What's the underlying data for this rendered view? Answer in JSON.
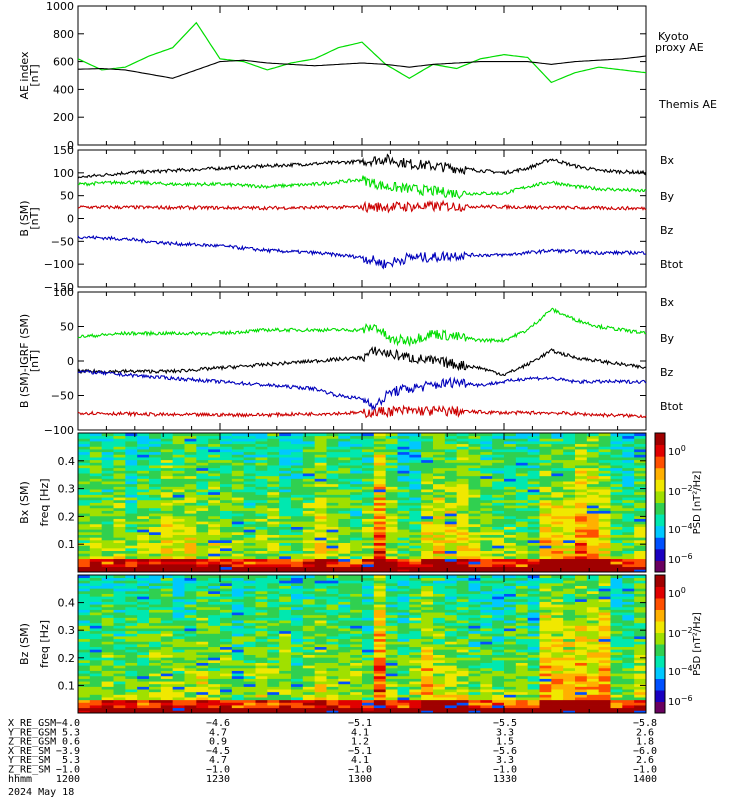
{
  "figure": {
    "time_ticks": [
      "1200",
      "1230",
      "1300",
      "1330",
      "1400"
    ]
  },
  "chart_data": [
    {
      "type": "line",
      "panel": "ae",
      "ylabel": "AE index [nT]",
      "ylim": [
        0,
        1000
      ],
      "yticks": [
        0,
        200,
        400,
        600,
        800,
        1000
      ],
      "x_range_hhmm": [
        "1200",
        "1400"
      ],
      "series": [
        {
          "name": "Kyoto proxy AE",
          "color": "#00dd00",
          "x_min": [
            0,
            5,
            10,
            15,
            20,
            25,
            30,
            35,
            40,
            45,
            50,
            55,
            60,
            65,
            70,
            75,
            80,
            85,
            90,
            95,
            100,
            105,
            110,
            115,
            120
          ],
          "values": [
            620,
            540,
            560,
            640,
            700,
            880,
            620,
            600,
            540,
            590,
            620,
            700,
            740,
            580,
            480,
            580,
            550,
            620,
            650,
            630,
            450,
            520,
            560,
            540,
            520
          ]
        },
        {
          "name": "Themis AE",
          "color": "#000000",
          "x_min": [
            0,
            5,
            10,
            15,
            20,
            25,
            30,
            35,
            40,
            45,
            50,
            55,
            60,
            65,
            70,
            75,
            80,
            85,
            90,
            95,
            100,
            105,
            110,
            115,
            120
          ],
          "values": [
            545,
            550,
            540,
            510,
            480,
            540,
            600,
            610,
            590,
            580,
            570,
            580,
            590,
            580,
            560,
            580,
            590,
            600,
            600,
            600,
            580,
            600,
            610,
            620,
            640
          ]
        }
      ],
      "legend": [
        "Kyoto",
        "proxy AE",
        "Themis AE"
      ]
    },
    {
      "type": "line",
      "panel": "b_sm",
      "ylabel": "B (SM) [nT]",
      "ylim": [
        -150,
        150
      ],
      "yticks": [
        -150,
        -100,
        -50,
        0,
        50,
        100,
        150
      ],
      "series": [
        {
          "name": "Bx",
          "color": "#000000",
          "x_min": [
            0,
            10,
            20,
            30,
            40,
            50,
            60,
            65,
            70,
            75,
            80,
            90,
            95,
            100,
            105,
            110,
            120
          ],
          "values": [
            90,
            100,
            105,
            110,
            115,
            120,
            125,
            130,
            120,
            115,
            110,
            100,
            110,
            130,
            115,
            105,
            100
          ]
        },
        {
          "name": "By",
          "color": "#00dd00",
          "x_min": [
            0,
            10,
            20,
            30,
            40,
            50,
            60,
            65,
            70,
            75,
            80,
            90,
            95,
            100,
            105,
            110,
            120
          ],
          "values": [
            75,
            80,
            75,
            75,
            70,
            75,
            85,
            70,
            65,
            60,
            55,
            55,
            70,
            80,
            70,
            65,
            60
          ]
        },
        {
          "name": "Bz",
          "color": "#cc0000",
          "x_min": [
            0,
            20,
            40,
            60,
            80,
            100,
            120
          ],
          "values": [
            25,
            24,
            23,
            25,
            27,
            24,
            22
          ]
        },
        {
          "name": "Btot",
          "color": "#0000bb",
          "x_min": [
            0,
            10,
            20,
            30,
            40,
            50,
            60,
            65,
            70,
            75,
            80,
            90,
            95,
            100,
            110,
            120
          ],
          "values": [
            -40,
            -45,
            -55,
            -60,
            -70,
            -75,
            -85,
            -100,
            -85,
            -85,
            -80,
            -80,
            -75,
            -70,
            -75,
            -75
          ]
        }
      ],
      "legend": [
        "Bx",
        "By",
        "Bz",
        "Btot"
      ]
    },
    {
      "type": "line",
      "panel": "b_minus_igrf",
      "ylabel": "B (SM)-IGRF (SM) [nT]",
      "ylim": [
        -100,
        100
      ],
      "yticks": [
        -100,
        -50,
        0,
        50,
        100
      ],
      "series": [
        {
          "name": "By",
          "color": "#00dd00",
          "x_min": [
            0,
            10,
            20,
            30,
            40,
            50,
            60,
            63,
            66,
            70,
            75,
            80,
            85,
            90,
            95,
            100,
            105,
            110,
            115,
            120
          ],
          "values": [
            35,
            40,
            40,
            40,
            45,
            45,
            45,
            50,
            30,
            30,
            40,
            35,
            30,
            30,
            45,
            75,
            60,
            50,
            45,
            40
          ]
        },
        {
          "name": "Bx",
          "color": "#000000",
          "x_min": [
            0,
            10,
            20,
            30,
            40,
            50,
            60,
            63,
            66,
            70,
            75,
            80,
            85,
            90,
            95,
            100,
            105,
            110,
            115,
            120
          ],
          "values": [
            -15,
            -15,
            -15,
            -10,
            -5,
            0,
            5,
            15,
            10,
            5,
            0,
            -5,
            -10,
            -20,
            -5,
            15,
            5,
            0,
            -5,
            -10
          ]
        },
        {
          "name": "Bz",
          "color": "#cc0000",
          "x_min": [
            0,
            20,
            40,
            60,
            65,
            70,
            80,
            90,
            100,
            110,
            120
          ],
          "values": [
            -75,
            -78,
            -78,
            -75,
            -73,
            -72,
            -73,
            -75,
            -75,
            -78,
            -80
          ]
        },
        {
          "name": "Btot",
          "color": "#0000bb",
          "x_min": [
            0,
            10,
            20,
            30,
            40,
            50,
            55,
            60,
            63,
            66,
            70,
            75,
            80,
            85,
            90,
            95,
            100,
            105,
            110,
            115,
            120
          ],
          "values": [
            -15,
            -20,
            -25,
            -30,
            -35,
            -40,
            -50,
            -55,
            -65,
            -45,
            -40,
            -35,
            -30,
            -35,
            -30,
            -25,
            -25,
            -30,
            -30,
            -30,
            -30
          ]
        }
      ],
      "legend": [
        "Bx",
        "By",
        "Bz",
        "Btot"
      ]
    },
    {
      "type": "heatmap",
      "panel": "bx_spectrogram",
      "ylabel": "Bx (SM) freq [Hz]",
      "ylim": [
        0,
        0.5
      ],
      "yticks": [
        0.1,
        0.2,
        0.3,
        0.4
      ],
      "colorbar_label": "PSD [nT^2/Hz]",
      "colorbar_ticks": [
        "10^0",
        "10^-2",
        "10^-4",
        "10^-6"
      ]
    },
    {
      "type": "heatmap",
      "panel": "bz_spectrogram",
      "ylabel": "Bz (SM) freq [Hz]",
      "ylim": [
        0,
        0.5
      ],
      "yticks": [
        0.1,
        0.2,
        0.3,
        0.4
      ],
      "colorbar_label": "PSD [nT^2/Hz]",
      "colorbar_ticks": [
        "10^0",
        "10^-2",
        "10^-4",
        "10^-6"
      ]
    }
  ],
  "ephemeris": {
    "rows": [
      {
        "label": "X_RE_GSM",
        "values": [
          "-4.0",
          "-4.6",
          "-5.1",
          "-5.5",
          "-5.8"
        ]
      },
      {
        "label": "Y_RE_GSM",
        "values": [
          "5.3",
          "4.7",
          "4.1",
          "3.3",
          "2.6"
        ]
      },
      {
        "label": "Z_RE_GSM",
        "values": [
          "0.6",
          "0.9",
          "1.2",
          "1.5",
          "1.8"
        ]
      },
      {
        "label": "X_RE_SM",
        "values": [
          "-3.9",
          "-4.5",
          "-5.1",
          "-5.6",
          "-6.0"
        ]
      },
      {
        "label": "Y_RE_SM",
        "values": [
          "5.3",
          "4.7",
          "4.1",
          "3.3",
          "2.6"
        ]
      },
      {
        "label": "Z_RE_SM",
        "values": [
          "-1.0",
          "-1.0",
          "-1.0",
          "-1.0",
          "-1.0"
        ]
      },
      {
        "label": "hhmm",
        "values": [
          "1200",
          "1230",
          "1300",
          "1330",
          "1400"
        ]
      }
    ],
    "date": "2024 May 18"
  }
}
